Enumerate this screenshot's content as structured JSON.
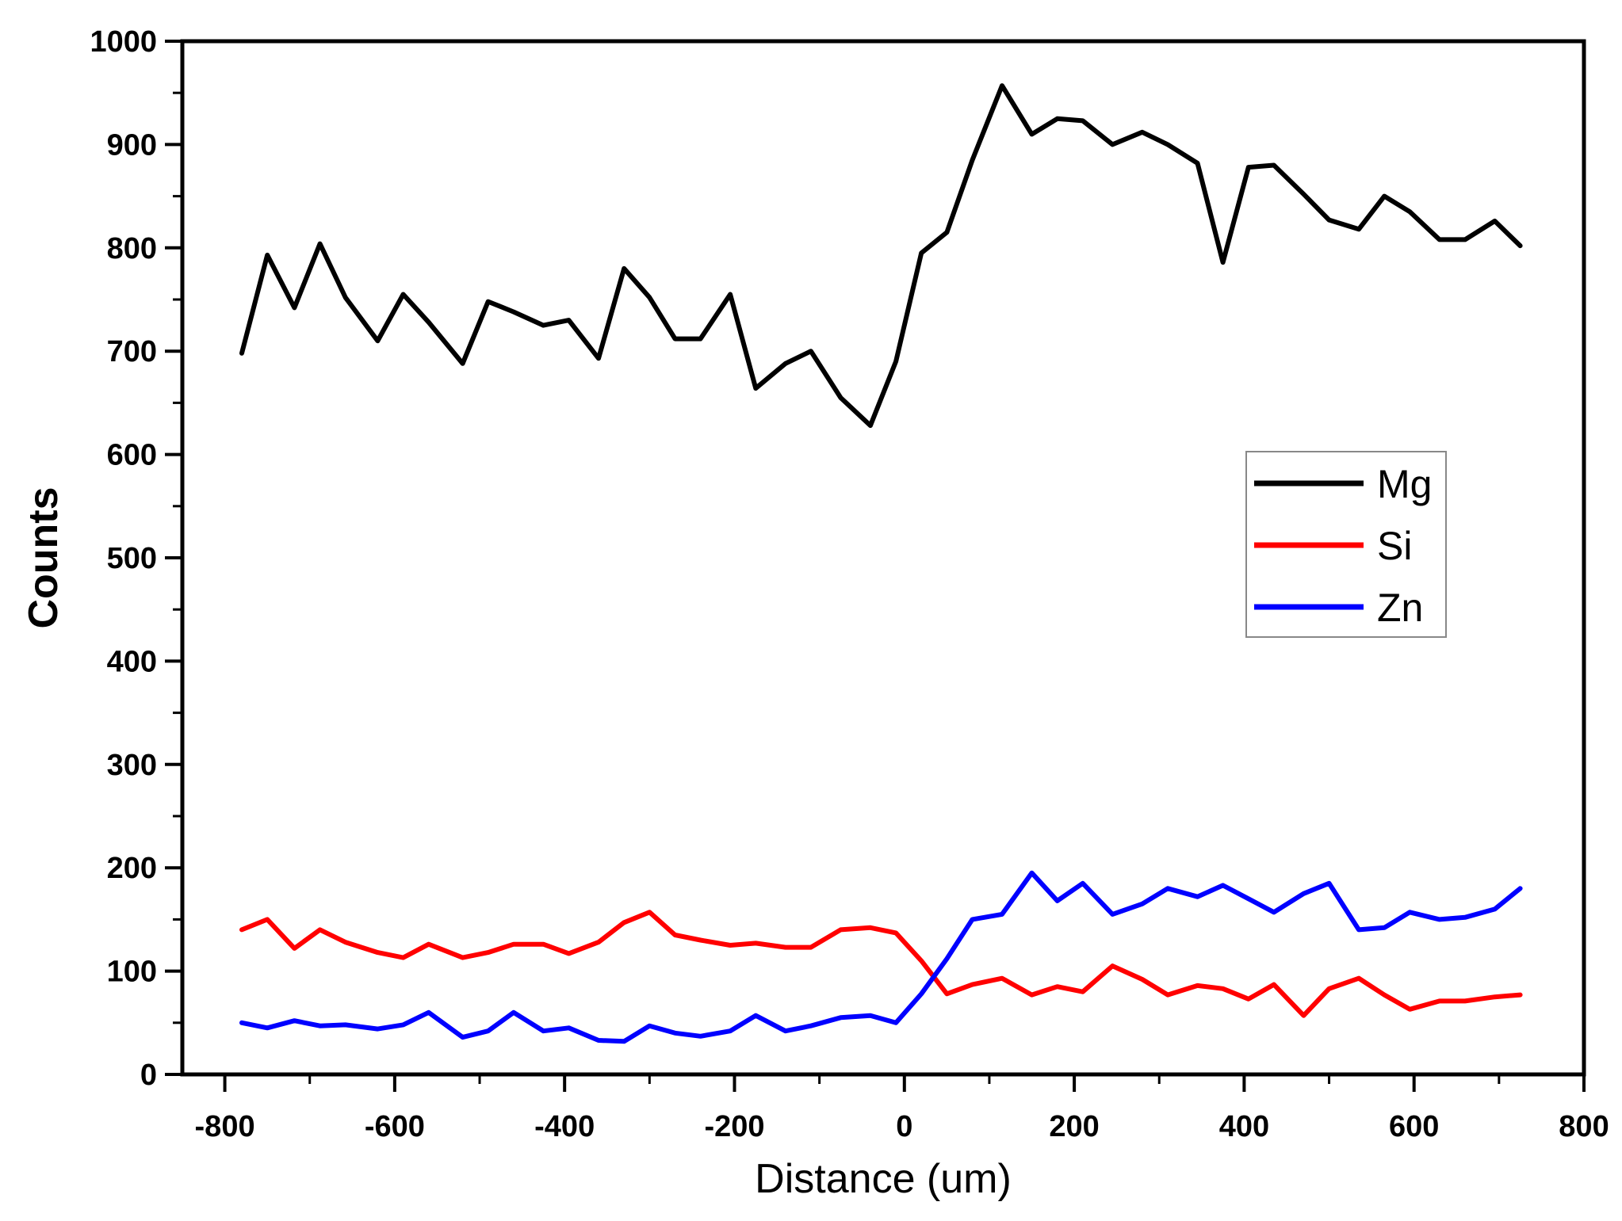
{
  "chart_data": {
    "type": "line",
    "title": "",
    "xlabel": "Distance (um)",
    "ylabel": "Counts",
    "xlim": [
      -850,
      800
    ],
    "ylim": [
      0,
      1000
    ],
    "xticks": [
      -800,
      -600,
      -400,
      -200,
      0,
      200,
      400,
      600,
      800
    ],
    "yticks": [
      0,
      100,
      200,
      300,
      400,
      500,
      600,
      700,
      800,
      900,
      1000
    ],
    "grid": false,
    "legend_position": "right",
    "series": [
      {
        "name": "Mg",
        "color": "#000000",
        "x": [
          -780,
          -750,
          -718,
          -688,
          -658,
          -620,
          -590,
          -560,
          -520,
          -490,
          -460,
          -425,
          -395,
          -360,
          -330,
          -300,
          -270,
          -240,
          -205,
          -175,
          -140,
          -110,
          -75,
          -40,
          -10,
          20,
          50,
          80,
          115,
          150,
          180,
          210,
          245,
          280,
          310,
          345,
          375,
          405,
          435,
          470,
          500,
          535,
          565,
          595,
          630,
          660,
          695,
          725
        ],
        "y": [
          698,
          793,
          742,
          804,
          752,
          710,
          755,
          728,
          688,
          748,
          738,
          725,
          730,
          693,
          780,
          752,
          712,
          712,
          755,
          664,
          688,
          700,
          655,
          628,
          690,
          795,
          815,
          885,
          957,
          910,
          925,
          923,
          900,
          912,
          900,
          882,
          786,
          878,
          880,
          852,
          827,
          818,
          850,
          835,
          808,
          808,
          826,
          802
        ]
      },
      {
        "name": "Si",
        "color": "#ff0000",
        "x": [
          -780,
          -750,
          -718,
          -688,
          -658,
          -620,
          -590,
          -560,
          -520,
          -490,
          -460,
          -425,
          -395,
          -360,
          -330,
          -300,
          -270,
          -240,
          -205,
          -175,
          -140,
          -110,
          -75,
          -40,
          -10,
          20,
          50,
          80,
          115,
          150,
          180,
          210,
          245,
          280,
          310,
          345,
          375,
          405,
          435,
          470,
          500,
          535,
          565,
          595,
          630,
          660,
          695,
          725
        ],
        "y": [
          140,
          150,
          122,
          140,
          128,
          118,
          113,
          126,
          113,
          118,
          126,
          126,
          117,
          128,
          147,
          157,
          135,
          130,
          125,
          127,
          123,
          123,
          140,
          142,
          137,
          110,
          78,
          87,
          93,
          77,
          85,
          80,
          105,
          92,
          77,
          86,
          83,
          73,
          87,
          57,
          83,
          93,
          77,
          63,
          71,
          71,
          75,
          77
        ]
      },
      {
        "name": "Zn",
        "color": "#0000ff",
        "x": [
          -780,
          -750,
          -718,
          -688,
          -658,
          -620,
          -590,
          -560,
          -520,
          -490,
          -460,
          -425,
          -395,
          -360,
          -330,
          -300,
          -270,
          -240,
          -205,
          -175,
          -140,
          -110,
          -75,
          -40,
          -10,
          20,
          50,
          80,
          115,
          150,
          180,
          210,
          245,
          280,
          310,
          345,
          375,
          405,
          435,
          470,
          500,
          535,
          565,
          595,
          630,
          660,
          695,
          725
        ],
        "y": [
          50,
          45,
          52,
          47,
          48,
          44,
          48,
          60,
          36,
          42,
          60,
          42,
          45,
          33,
          32,
          47,
          40,
          37,
          42,
          57,
          42,
          47,
          55,
          57,
          50,
          78,
          112,
          150,
          155,
          195,
          168,
          185,
          155,
          165,
          180,
          172,
          183,
          170,
          157,
          175,
          185,
          140,
          142,
          157,
          150,
          152,
          160,
          180
        ]
      }
    ]
  }
}
